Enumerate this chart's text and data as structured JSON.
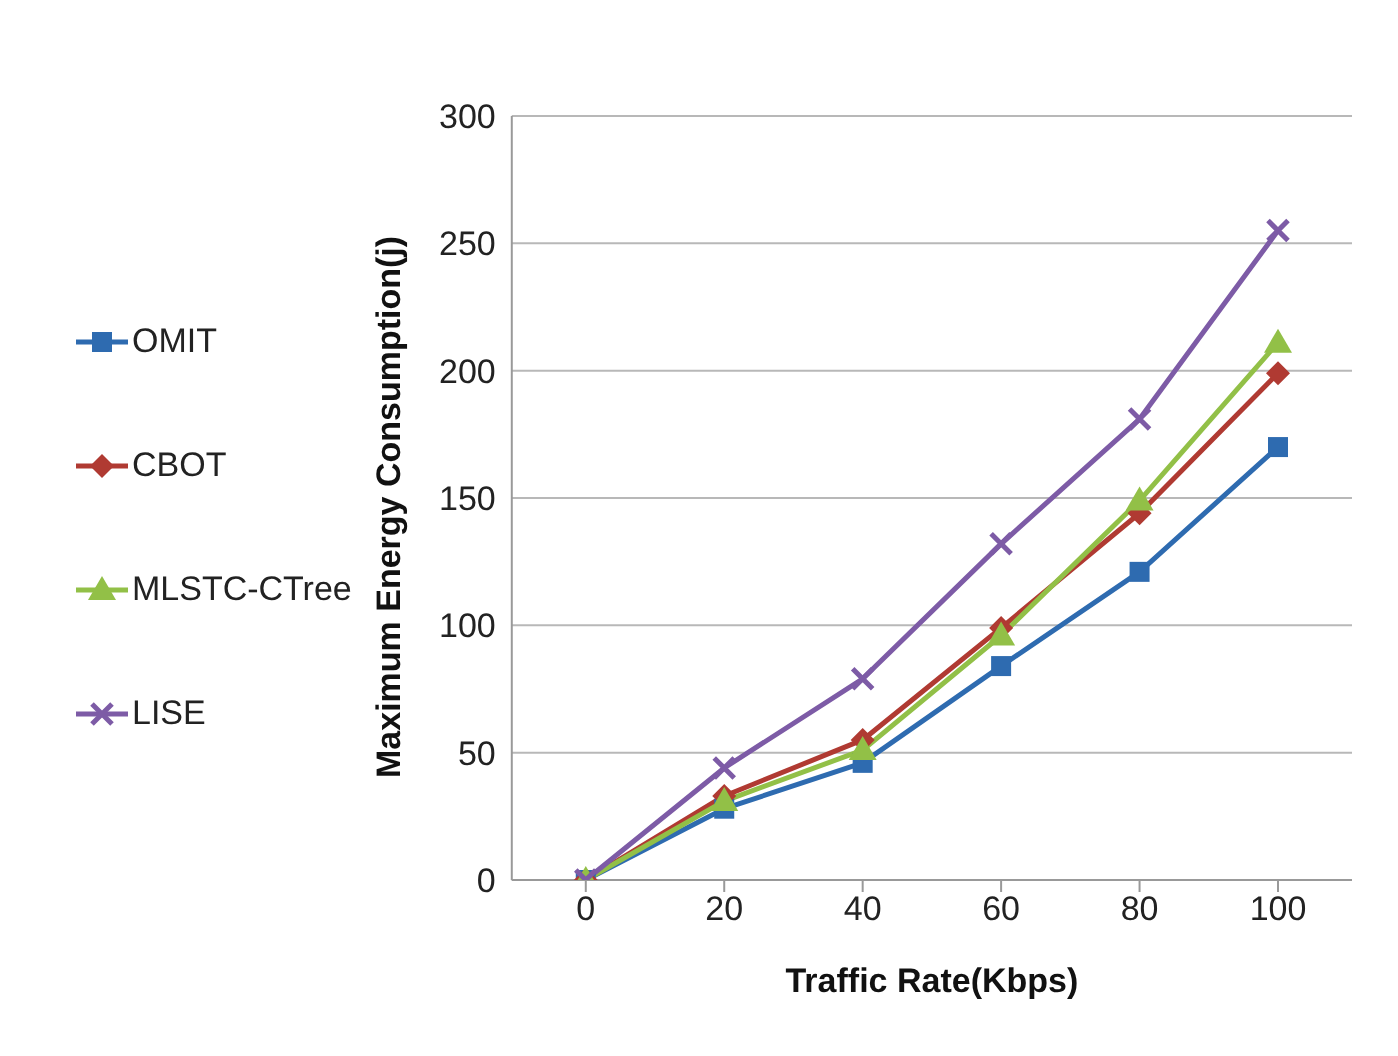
{
  "chart_data": {
    "type": "line",
    "xlabel": "Traffic Rate(Kbps)",
    "ylabel": "Maximum Energy Consumption(j)",
    "categories": [
      "0",
      "20",
      "40",
      "60",
      "80",
      "100"
    ],
    "series": [
      {
        "name": "OMIT",
        "color": "#2e6bb0",
        "marker": "square",
        "values": [
          0,
          28,
          46,
          84,
          121,
          170
        ]
      },
      {
        "name": "CBOT",
        "color": "#b03a32",
        "marker": "diamond",
        "values": [
          0,
          33,
          55,
          99,
          144,
          199
        ]
      },
      {
        "name": "MLSTC-CTree",
        "color": "#92c047",
        "marker": "triangle",
        "values": [
          0,
          31,
          51,
          96,
          149,
          211
        ]
      },
      {
        "name": "LISE",
        "color": "#7d5ba6",
        "marker": "cross",
        "values": [
          0,
          44,
          79,
          132,
          181,
          255
        ]
      }
    ],
    "ylim": [
      0,
      300
    ],
    "yticks": [
      0,
      50,
      100,
      150,
      200,
      250,
      300
    ],
    "grid": "y",
    "legend": "left",
    "line_style": "solid"
  }
}
